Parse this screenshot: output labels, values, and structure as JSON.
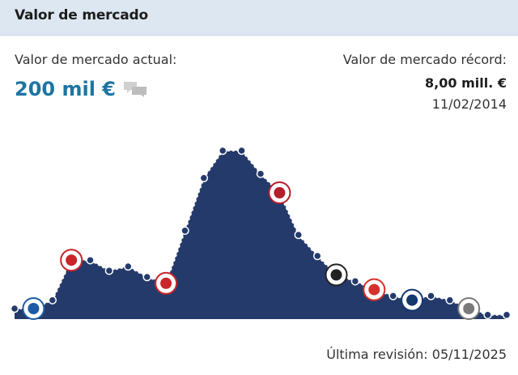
{
  "header": {
    "title": "Valor de mercado"
  },
  "current": {
    "label": "Valor de mercado actual:",
    "value": "200 mil €",
    "icon": "speech-bubbles-icon"
  },
  "record": {
    "label": "Valor de mercado récord:",
    "value": "8,00 mill. €",
    "date": "11/02/2014"
  },
  "footer": {
    "last_update": "Última revisión: 05/11/2025"
  },
  "colors": {
    "accent": "#1d75a3",
    "area_fill": "#243a6b",
    "line": "#ffffff",
    "header_bg": "#dce7f1"
  },
  "chart_data": {
    "type": "area",
    "values": [
      0.5,
      0.5,
      0.9,
      2.8,
      2.8,
      2.3,
      2.5,
      2.0,
      1.7,
      4.2,
      6.7,
      8.0,
      8.0,
      6.9,
      6.0,
      4.0,
      3.0,
      2.1,
      1.8,
      1.4,
      1.1,
      0.9,
      1.1,
      0.9,
      0.5,
      0.2,
      0.2
    ],
    "markers": [
      {
        "index": 1,
        "label": "club-badge-schalke",
        "color": "#1d5ba6"
      },
      {
        "index": 3,
        "label": "club-badge-red-white",
        "color": "#c9252b"
      },
      {
        "index": 8,
        "label": "club-badge-eagle-red",
        "color": "#c9252b"
      },
      {
        "index": 14,
        "label": "club-badge-red-shield",
        "color": "#b41d2b"
      },
      {
        "index": 17,
        "label": "club-badge-black-white",
        "color": "#222222"
      },
      {
        "index": 19,
        "label": "club-badge-red-yellow",
        "color": "#d6312a"
      },
      {
        "index": 21,
        "label": "club-badge-boca",
        "color": "#12386e"
      },
      {
        "index": 24,
        "label": "club-badge-grey-stripes",
        "color": "#7a7a7a"
      }
    ]
  }
}
